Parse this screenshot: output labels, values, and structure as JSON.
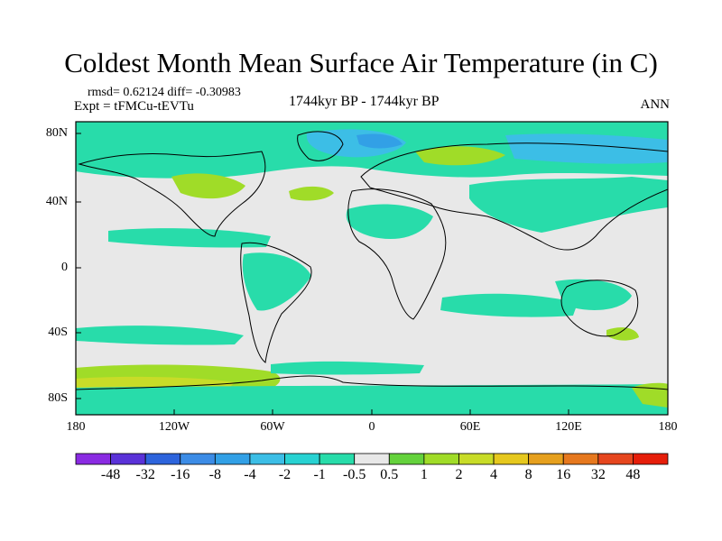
{
  "header": {
    "title": "Coldest Month Mean Surface Air Temperature (in C)",
    "stats_line1": "rmsd= 0.62124 diff= -0.30983",
    "stats_line2": "Expt = tFMCu-tEVTu",
    "period": "1744kyr BP - 1744kyr BP",
    "season": "ANN"
  },
  "map": {
    "lat_labels": [
      "80N",
      "40N",
      "0",
      "40S",
      "80S"
    ],
    "lon_labels": [
      "180",
      "120W",
      "60W",
      "0",
      "60E",
      "120E",
      "180"
    ],
    "background_color": "#e8e8e8"
  },
  "colorbar": {
    "labels": [
      "-48",
      "-32",
      "-16",
      "-8",
      "-4",
      "-2",
      "-1",
      "-0.5",
      "0.5",
      "1",
      "2",
      "4",
      "8",
      "16",
      "32",
      "48"
    ],
    "colors": [
      "#8a2be2",
      "#5a32d8",
      "#2d64dc",
      "#3c8ce6",
      "#32a0e6",
      "#3cbee6",
      "#28d2d2",
      "#28dcaa",
      "#e8e8e8",
      "#64d23c",
      "#a0dc28",
      "#c8dc28",
      "#e6c81e",
      "#e6a01e",
      "#e6781e",
      "#e6461e",
      "#e61e0a"
    ]
  }
}
